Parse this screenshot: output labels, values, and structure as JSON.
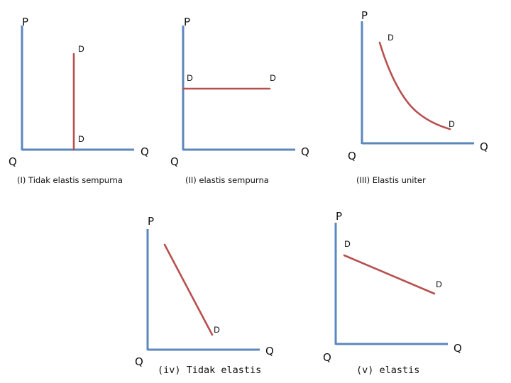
{
  "panels": [
    {
      "id": "i",
      "caption": "(I) Tidak elastis sempurna",
      "y_label": "P",
      "x_label": "Q",
      "origin_label": "Q",
      "curve_type": "vertical",
      "curve_start_label": "D",
      "curve_end_label": "D"
    },
    {
      "id": "ii",
      "caption": "(II) elastis sempurna",
      "y_label": "P",
      "x_label": "Q",
      "origin_label": "Q",
      "curve_type": "horizontal",
      "curve_start_label": "D",
      "curve_end_label": "D"
    },
    {
      "id": "iii",
      "caption": "(III) Elastis uniter",
      "y_label": "P",
      "x_label": "Q",
      "origin_label": "Q",
      "curve_type": "hyperbola",
      "curve_start_label": "D",
      "curve_end_label": "D"
    },
    {
      "id": "iv",
      "caption": "(iv) Tidak elastis",
      "y_label": "P",
      "x_label": "Q",
      "origin_label": "Q",
      "curve_type": "steep-line",
      "curve_end_label": "D"
    },
    {
      "id": "v",
      "caption": "(v) elastis",
      "y_label": "P",
      "x_label": "Q",
      "origin_label": "Q",
      "curve_type": "flat-line",
      "curve_start_label": "D",
      "curve_end_label": "D"
    }
  ],
  "colors": {
    "axis": "#5b87bd",
    "curve": "#b8504f"
  }
}
